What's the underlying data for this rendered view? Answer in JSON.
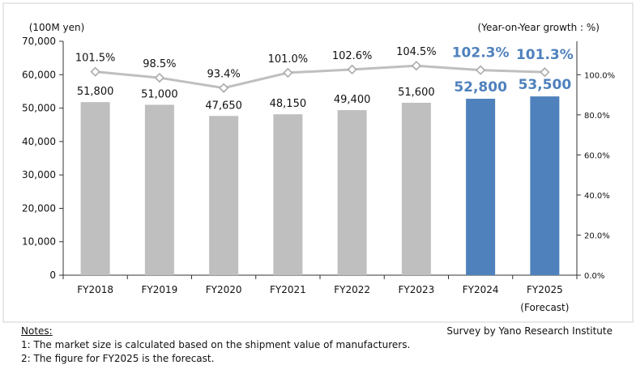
{
  "chart_data": {
    "type": "bar",
    "left_axis_unit": "(100M yen)",
    "right_axis_unit": "(Year-on-Year growth : %)",
    "categories": [
      "FY2018",
      "FY2019",
      "FY2020",
      "FY2021",
      "FY2022",
      "FY2023",
      "FY2024",
      "FY2025"
    ],
    "category_sublabels": [
      "",
      "",
      "",
      "",
      "",
      "",
      "",
      "(Forecast)"
    ],
    "bar_values": [
      51800,
      51000,
      47650,
      48150,
      49400,
      51600,
      52800,
      53500
    ],
    "bar_labels": [
      "51,800",
      "51,000",
      "47,650",
      "48,150",
      "49,400",
      "51,600",
      "52,800",
      "53,500"
    ],
    "growth_values": [
      101.5,
      98.5,
      93.4,
      101.0,
      102.6,
      104.5,
      102.3,
      101.3
    ],
    "growth_labels": [
      "101.5%",
      "98.5%",
      "93.4%",
      "101.0%",
      "102.6%",
      "104.5%",
      "102.3%",
      "101.3%"
    ],
    "highlighted": [
      false,
      false,
      false,
      false,
      false,
      false,
      true,
      true
    ],
    "left_ylim": [
      0,
      70000
    ],
    "left_ticks": [
      "0",
      "10,000",
      "20,000",
      "30,000",
      "40,000",
      "50,000",
      "60,000",
      "70,000"
    ],
    "right_ylim": [
      0,
      116.7
    ],
    "right_ticks": [
      "0.0%",
      "20.0%",
      "40.0%",
      "60.0%",
      "80.0%",
      "100.0%"
    ],
    "grid": false,
    "colors": {
      "bar": "#bfbfbf",
      "bar_highlight": "#4f81bd",
      "line": "#bfbfbf",
      "highlight_text": "#4f81bd"
    }
  },
  "notes": {
    "heading": "Notes:",
    "lines": [
      "1: The market size is calculated based on the shipment value of manufacturers.",
      "2: The figure for FY2025 is the forecast."
    ],
    "source": "Survey by Yano Research Institute"
  }
}
